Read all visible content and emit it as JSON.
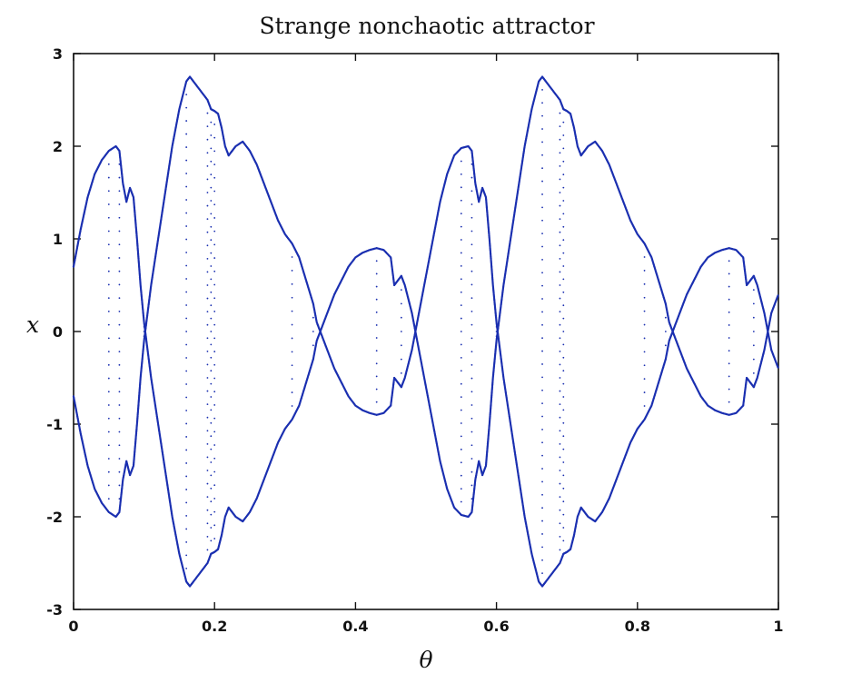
{
  "chart_data": {
    "type": "scatter",
    "title": "Strange nonchaotic attractor",
    "xlabel": "θ",
    "ylabel": "x",
    "xlim": [
      0,
      1
    ],
    "ylim": [
      -3,
      3
    ],
    "xticks": [
      0,
      0.2,
      0.4,
      0.6,
      0.8,
      1
    ],
    "xtick_labels": [
      "0",
      "0.2",
      "0.4",
      "0.6",
      "0.8",
      "1"
    ],
    "yticks": [
      3,
      2,
      1,
      0,
      -1,
      -2,
      -3
    ],
    "ytick_labels": [
      "3",
      "2",
      "1",
      "0",
      "-1",
      "-2",
      "-3"
    ],
    "grid": false,
    "legend": false,
    "point_color": "#1a2fb0",
    "series": [
      {
        "values_description_free": true,
        "x": [
          0.0,
          0.01,
          0.02,
          0.03,
          0.04,
          0.05,
          0.06,
          0.065,
          0.07,
          0.075,
          0.08,
          0.085,
          0.09,
          0.095,
          0.1,
          0.11,
          0.12,
          0.13,
          0.14,
          0.15,
          0.16,
          0.165,
          0.17,
          0.18,
          0.19,
          0.195,
          0.2,
          0.205,
          0.21,
          0.215,
          0.22,
          0.225,
          0.23,
          0.24,
          0.25,
          0.26,
          0.27,
          0.28,
          0.29,
          0.3,
          0.31,
          0.32,
          0.33,
          0.34,
          0.345,
          0.35,
          0.36,
          0.37,
          0.38,
          0.39,
          0.4,
          0.41,
          0.42,
          0.43,
          0.44,
          0.45,
          0.455,
          0.46,
          0.465,
          0.47,
          0.48,
          0.49,
          0.5,
          0.51,
          0.52,
          0.53,
          0.54,
          0.55,
          0.56,
          0.565,
          0.57,
          0.575,
          0.58,
          0.585,
          0.59,
          0.595,
          0.6,
          0.61,
          0.62,
          0.63,
          0.64,
          0.65,
          0.66,
          0.665,
          0.67,
          0.68,
          0.69,
          0.695,
          0.7,
          0.705,
          0.71,
          0.715,
          0.72,
          0.725,
          0.73,
          0.74,
          0.75,
          0.76,
          0.77,
          0.78,
          0.79,
          0.8,
          0.81,
          0.82,
          0.83,
          0.84,
          0.845,
          0.85,
          0.86,
          0.87,
          0.88,
          0.89,
          0.9,
          0.91,
          0.92,
          0.93,
          0.94,
          0.95,
          0.955,
          0.96,
          0.965,
          0.97,
          0.98,
          0.99,
          1.0
        ],
        "upper": [
          0.7,
          1.1,
          1.45,
          1.7,
          1.85,
          1.95,
          2.0,
          1.95,
          1.6,
          1.4,
          1.55,
          1.45,
          1.0,
          0.5,
          0.1,
          -0.5,
          -1.0,
          -1.5,
          -2.0,
          -2.4,
          -2.7,
          -2.75,
          -2.7,
          -2.6,
          -2.5,
          -2.4,
          -2.38,
          -2.35,
          -2.2,
          -2.0,
          -1.9,
          -1.95,
          -2.0,
          -2.05,
          -1.95,
          -1.8,
          -1.6,
          -1.4,
          -1.2,
          -1.05,
          -0.95,
          -0.8,
          -0.55,
          -0.3,
          -0.1,
          0.0,
          0.2,
          0.4,
          0.55,
          0.7,
          0.8,
          0.85,
          0.88,
          0.9,
          0.88,
          0.8,
          0.5,
          0.55,
          0.6,
          0.5,
          0.2,
          -0.2,
          -0.6,
          -1.0,
          -1.4,
          -1.7,
          -1.9,
          -1.98,
          -2.0,
          -1.95,
          -1.6,
          -1.4,
          -1.55,
          -1.45,
          -1.0,
          -0.5,
          -0.1,
          0.5,
          1.0,
          1.5,
          2.0,
          2.4,
          2.7,
          2.75,
          2.7,
          2.6,
          2.5,
          2.4,
          2.38,
          2.35,
          2.2,
          2.0,
          1.9,
          1.95,
          2.0,
          2.05,
          1.95,
          1.8,
          1.6,
          1.4,
          1.2,
          1.05,
          0.95,
          0.8,
          0.55,
          0.3,
          0.1,
          0.0,
          -0.2,
          -0.4,
          -0.55,
          -0.7,
          -0.8,
          -0.85,
          -0.88,
          -0.9,
          -0.88,
          -0.8,
          -0.5,
          -0.55,
          -0.6,
          -0.5,
          -0.2,
          0.2,
          0.4
        ]
      }
    ]
  }
}
